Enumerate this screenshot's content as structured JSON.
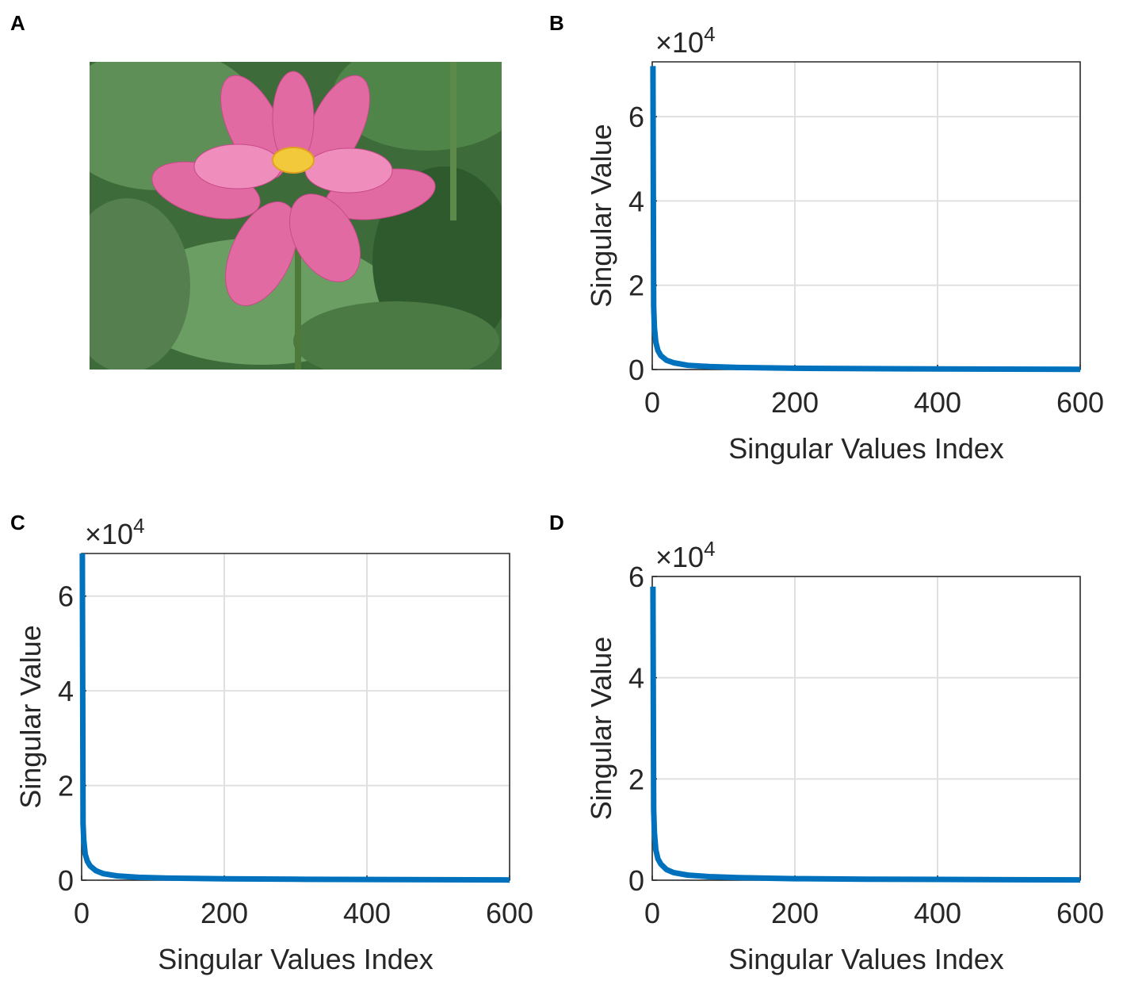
{
  "panel_a": {
    "label": "A"
  },
  "chart_data": [
    {
      "type": "line",
      "panel": "B",
      "xlabel": "Singular Values Index",
      "ylabel": "Singular Value",
      "y_multiplier": "×10",
      "y_multiplier_exponent": "4",
      "xlim": [
        0,
        600
      ],
      "xticks": [
        0,
        200,
        400,
        600
      ],
      "ylim": [
        0,
        7.3
      ],
      "yticks": [
        0,
        2,
        4,
        6
      ],
      "grid": true,
      "x": [
        1,
        2,
        3,
        5,
        8,
        12,
        20,
        30,
        50,
        80,
        120,
        200,
        300,
        400,
        500,
        600
      ],
      "series": [
        {
          "color": "#0072bd",
          "values": [
            7.2,
            1.5,
            1.0,
            0.65,
            0.45,
            0.33,
            0.22,
            0.16,
            0.1,
            0.07,
            0.05,
            0.03,
            0.02,
            0.015,
            0.01,
            0.005
          ]
        }
      ]
    },
    {
      "type": "line",
      "panel": "C",
      "xlabel": "Singular Values Index",
      "ylabel": "Singular Value",
      "y_multiplier": "×10",
      "y_multiplier_exponent": "4",
      "xlim": [
        0,
        600
      ],
      "xticks": [
        0,
        200,
        400,
        600
      ],
      "ylim": [
        0,
        6.9
      ],
      "yticks": [
        0,
        2,
        4,
        6
      ],
      "grid": true,
      "x": [
        1,
        2,
        3,
        5,
        8,
        12,
        20,
        30,
        50,
        80,
        120,
        200,
        300,
        400,
        500,
        600
      ],
      "series": [
        {
          "color": "#0072bd",
          "values": [
            6.9,
            1.2,
            0.85,
            0.55,
            0.4,
            0.3,
            0.2,
            0.14,
            0.09,
            0.06,
            0.045,
            0.03,
            0.02,
            0.015,
            0.01,
            0.005
          ]
        }
      ]
    },
    {
      "type": "line",
      "panel": "D",
      "xlabel": "Singular Values Index",
      "ylabel": "Singular Value",
      "y_multiplier": "×10",
      "y_multiplier_exponent": "4",
      "xlim": [
        0,
        600
      ],
      "xticks": [
        0,
        200,
        400,
        600
      ],
      "ylim": [
        0,
        6
      ],
      "yticks": [
        0,
        2,
        4,
        6
      ],
      "grid": true,
      "x": [
        1,
        2,
        3,
        5,
        8,
        12,
        20,
        30,
        50,
        80,
        120,
        200,
        300,
        400,
        500,
        600
      ],
      "series": [
        {
          "color": "#0072bd",
          "values": [
            5.8,
            1.4,
            0.95,
            0.6,
            0.42,
            0.32,
            0.21,
            0.15,
            0.1,
            0.07,
            0.05,
            0.03,
            0.02,
            0.015,
            0.01,
            0.005
          ]
        }
      ]
    }
  ]
}
